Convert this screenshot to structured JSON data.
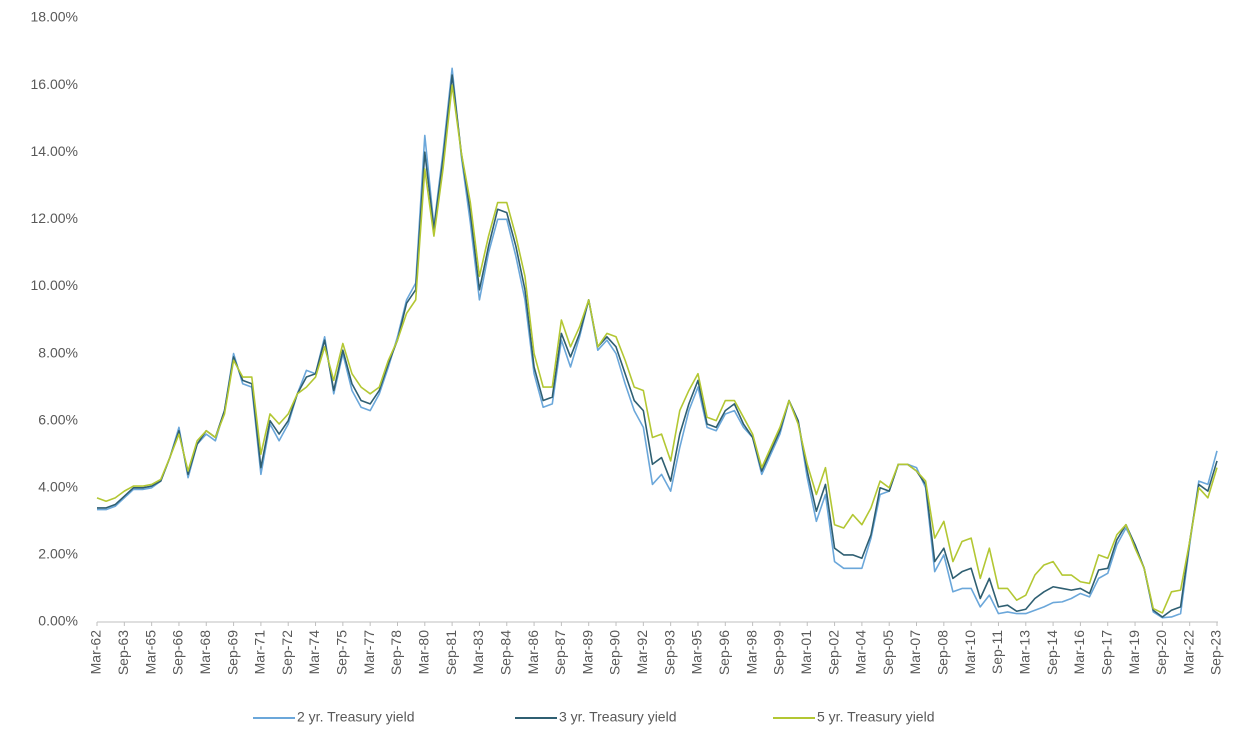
{
  "chart_data": {
    "type": "line",
    "categories": [
      "Mar-62",
      null,
      null,
      "Sep-63",
      null,
      null,
      "Mar-65",
      null,
      null,
      "Sep-66",
      null,
      null,
      "Mar-68",
      null,
      null,
      "Sep-69",
      null,
      null,
      "Mar-71",
      null,
      null,
      "Sep-72",
      null,
      null,
      "Mar-74",
      null,
      null,
      "Sep-75",
      null,
      null,
      "Mar-77",
      null,
      null,
      "Sep-78",
      null,
      null,
      "Mar-80",
      null,
      null,
      "Sep-81",
      null,
      null,
      "Mar-83",
      null,
      null,
      "Sep-84",
      null,
      null,
      "Mar-86",
      null,
      null,
      "Sep-87",
      null,
      null,
      "Mar-89",
      null,
      null,
      "Sep-90",
      null,
      null,
      "Mar-92",
      null,
      null,
      "Sep-93",
      null,
      null,
      "Mar-95",
      null,
      null,
      "Sep-96",
      null,
      null,
      "Mar-98",
      null,
      null,
      "Sep-99",
      null,
      null,
      "Mar-01",
      null,
      null,
      "Sep-02",
      null,
      null,
      "Mar-04",
      null,
      null,
      "Sep-05",
      null,
      null,
      "Mar-07",
      null,
      null,
      "Sep-08",
      null,
      null,
      "Mar-10",
      null,
      null,
      "Sep-11",
      null,
      null,
      "Mar-13",
      null,
      null,
      "Sep-14",
      null,
      null,
      "Mar-16",
      null,
      null,
      "Sep-17",
      null,
      null,
      "Mar-19",
      null,
      null,
      "Sep-20",
      null,
      null,
      "Mar-22",
      null,
      null,
      "Sep-23"
    ],
    "series": [
      {
        "name": "2 yr. Treasury yield",
        "color": "#6ba7da",
        "values": [
          3.35,
          3.35,
          3.45,
          3.7,
          3.95,
          3.95,
          4.0,
          4.2,
          4.9,
          5.8,
          4.3,
          5.3,
          5.6,
          5.4,
          6.3,
          8.0,
          7.1,
          7.0,
          4.4,
          5.9,
          5.4,
          5.9,
          6.8,
          7.5,
          7.4,
          8.5,
          6.8,
          8.0,
          6.9,
          6.4,
          6.3,
          6.8,
          7.6,
          8.5,
          9.6,
          10.1,
          14.5,
          11.8,
          14.0,
          16.5,
          13.9,
          11.9,
          9.6,
          11.0,
          12.0,
          12.0,
          10.9,
          9.6,
          7.4,
          6.4,
          6.5,
          8.4,
          7.6,
          8.5,
          9.6,
          8.1,
          8.4,
          8.0,
          7.1,
          6.3,
          5.8,
          4.1,
          4.4,
          3.9,
          5.2,
          6.3,
          7.0,
          5.8,
          5.7,
          6.2,
          6.3,
          5.8,
          5.5,
          4.4,
          5.0,
          5.6,
          6.6,
          6.0,
          4.3,
          3.0,
          3.8,
          1.8,
          1.6,
          1.6,
          1.6,
          2.5,
          3.8,
          3.9,
          4.7,
          4.7,
          4.6,
          4.0,
          1.5,
          2.0,
          0.9,
          1.0,
          1.0,
          0.45,
          0.8,
          0.25,
          0.3,
          0.25,
          0.25,
          0.35,
          0.45,
          0.58,
          0.6,
          0.7,
          0.85,
          0.75,
          1.3,
          1.45,
          2.3,
          2.8,
          2.3,
          1.6,
          0.3,
          0.13,
          0.15,
          0.25,
          2.3,
          4.2,
          4.1,
          5.1
        ]
      },
      {
        "name": "3 yr. Treasury yield",
        "color": "#2f5f72",
        "values": [
          3.4,
          3.4,
          3.5,
          3.75,
          4.0,
          4.0,
          4.05,
          4.2,
          4.9,
          5.7,
          4.4,
          5.3,
          5.7,
          5.5,
          6.3,
          7.9,
          7.2,
          7.1,
          4.6,
          6.0,
          5.6,
          6.0,
          6.8,
          7.3,
          7.4,
          8.4,
          6.9,
          8.1,
          7.1,
          6.6,
          6.5,
          6.9,
          7.7,
          8.4,
          9.5,
          9.9,
          14.0,
          11.7,
          13.8,
          16.3,
          14.0,
          12.2,
          9.9,
          11.2,
          12.3,
          12.2,
          11.2,
          9.9,
          7.6,
          6.6,
          6.7,
          8.6,
          7.9,
          8.6,
          9.6,
          8.2,
          8.5,
          8.2,
          7.4,
          6.6,
          6.3,
          4.7,
          4.9,
          4.2,
          5.6,
          6.5,
          7.2,
          5.9,
          5.8,
          6.3,
          6.5,
          5.9,
          5.5,
          4.5,
          5.1,
          5.7,
          6.6,
          6.0,
          4.5,
          3.3,
          4.1,
          2.2,
          2.0,
          2.0,
          1.9,
          2.6,
          4.0,
          3.9,
          4.7,
          4.7,
          4.5,
          4.1,
          1.8,
          2.2,
          1.3,
          1.5,
          1.6,
          0.7,
          1.3,
          0.45,
          0.5,
          0.32,
          0.38,
          0.7,
          0.9,
          1.05,
          1.0,
          0.95,
          1.0,
          0.85,
          1.55,
          1.6,
          2.45,
          2.9,
          2.3,
          1.6,
          0.35,
          0.15,
          0.35,
          0.45,
          2.4,
          4.1,
          3.9,
          4.8
        ]
      },
      {
        "name": "5 yr. Treasury yield",
        "color": "#b3c733",
        "values": [
          3.7,
          3.6,
          3.7,
          3.9,
          4.05,
          4.05,
          4.1,
          4.25,
          4.9,
          5.6,
          4.5,
          5.4,
          5.7,
          5.5,
          6.2,
          7.8,
          7.3,
          7.3,
          5.0,
          6.2,
          5.9,
          6.2,
          6.8,
          7.0,
          7.3,
          8.2,
          7.2,
          8.3,
          7.4,
          7.0,
          6.8,
          7.0,
          7.8,
          8.4,
          9.2,
          9.6,
          13.5,
          11.5,
          13.5,
          16.0,
          14.0,
          12.5,
          10.3,
          11.5,
          12.5,
          12.5,
          11.5,
          10.3,
          8.0,
          7.0,
          7.0,
          9.0,
          8.2,
          8.8,
          9.6,
          8.2,
          8.6,
          8.5,
          7.8,
          7.0,
          6.9,
          5.5,
          5.6,
          4.8,
          6.3,
          6.9,
          7.4,
          6.1,
          6.0,
          6.6,
          6.6,
          6.1,
          5.6,
          4.6,
          5.2,
          5.8,
          6.6,
          5.9,
          4.7,
          3.8,
          4.6,
          2.9,
          2.8,
          3.2,
          2.9,
          3.4,
          4.2,
          4.0,
          4.7,
          4.7,
          4.5,
          4.2,
          2.5,
          3.0,
          1.8,
          2.4,
          2.5,
          1.3,
          2.2,
          1.0,
          1.0,
          0.65,
          0.8,
          1.4,
          1.7,
          1.8,
          1.4,
          1.4,
          1.2,
          1.15,
          2.0,
          1.9,
          2.6,
          2.9,
          2.2,
          1.6,
          0.4,
          0.27,
          0.9,
          0.95,
          2.4,
          4.0,
          3.7,
          4.6
        ]
      }
    ],
    "ylim": [
      0,
      18
    ],
    "yticks": [
      {
        "value": 0,
        "label": "0.00%"
      },
      {
        "value": 2,
        "label": "2.00%"
      },
      {
        "value": 4,
        "label": "4.00%"
      },
      {
        "value": 6,
        "label": "6.00%"
      },
      {
        "value": 8,
        "label": "8.00%"
      },
      {
        "value": 10,
        "label": "10.00%"
      },
      {
        "value": 12,
        "label": "12.00%"
      },
      {
        "value": 14,
        "label": "14.00%"
      },
      {
        "value": 16,
        "label": "16.00%"
      },
      {
        "value": 18,
        "label": "18.00%"
      }
    ],
    "grid": false,
    "legend": "bottom"
  }
}
